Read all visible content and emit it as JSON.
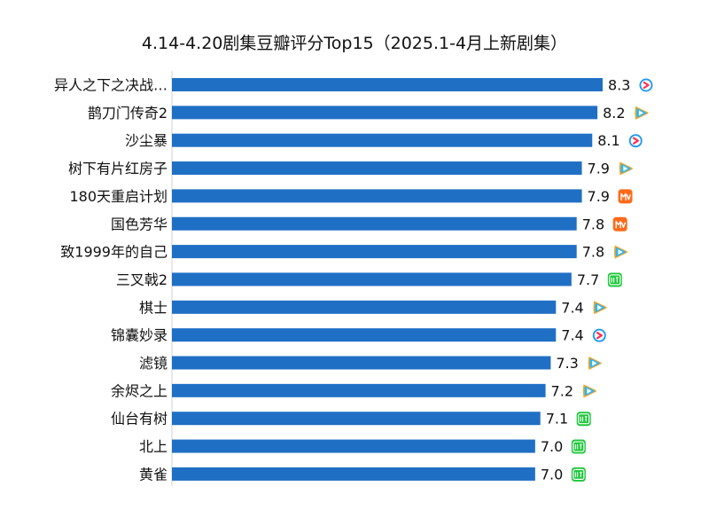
{
  "chart_data": {
    "type": "bar",
    "orientation": "horizontal",
    "title": "4.14-4.20剧集豆瓣评分Top15（2025.1-4月上新剧集）",
    "xlabel": "",
    "ylabel": "",
    "xlim": [
      0,
      8.5
    ],
    "grid": false,
    "legend": "none",
    "bar_color": "#1f6fc5",
    "categories": [
      "异人之下之决战…",
      "鹊刀门传奇2",
      "沙尘暴",
      "树下有片红房子",
      "180天重启计划",
      "国色芳华",
      "致1999年的自己",
      "三叉戟2",
      "棋士",
      "锦囊妙录",
      "滤镜",
      "余烬之上",
      "仙台有树",
      "北上",
      "黄雀"
    ],
    "values": [
      8.3,
      8.2,
      8.1,
      7.9,
      7.9,
      7.8,
      7.8,
      7.7,
      7.4,
      7.4,
      7.3,
      7.2,
      7.1,
      7.0,
      7.0
    ],
    "value_labels": [
      "8.3",
      "8.2",
      "8.1",
      "7.9",
      "7.9",
      "7.8",
      "7.8",
      "7.7",
      "7.4",
      "7.4",
      "7.3",
      "7.2",
      "7.1",
      "7.0",
      "7.0"
    ],
    "platform_icons": [
      "youku-icon",
      "tencent-video-icon",
      "youku-icon",
      "tencent-video-icon",
      "mango-tv-icon",
      "mango-tv-icon",
      "tencent-video-icon",
      "iqiyi-icon",
      "tencent-video-icon",
      "youku-icon",
      "tencent-video-icon",
      "tencent-video-icon",
      "iqiyi-icon",
      "iqiyi-icon",
      "iqiyi-icon"
    ]
  }
}
